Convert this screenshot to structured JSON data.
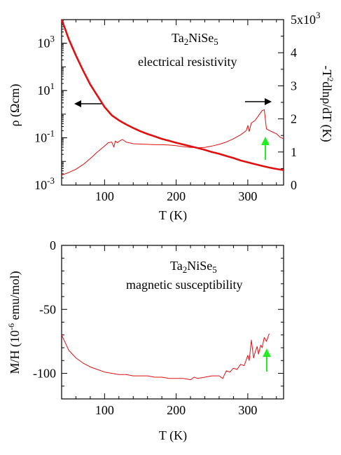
{
  "chart_data": [
    {
      "type": "line",
      "panel": "top",
      "annotations": [
        "Ta2NiSe5",
        "electrical resistivity"
      ],
      "xlabel": "T (K)",
      "ylabel_left": "ρ (Ωcm)",
      "ylabel_right": "-T²dlnρ/dT (K)",
      "xlim": [
        40,
        350
      ],
      "ylim_left": [
        0.001,
        10000
      ],
      "yscale_left": "log",
      "ylim_right": [
        0,
        5000
      ],
      "yscale_right": "linear",
      "x_ticks": [
        "100",
        "200",
        "300"
      ],
      "y_left_ticks": [
        "10^3",
        "10^1",
        "10^-1",
        "10^-3"
      ],
      "y_right_ticks": [
        "5x10^3",
        "4",
        "3",
        "2",
        "1",
        "0"
      ],
      "series": [
        {
          "axis": "left",
          "color": "#e01010",
          "x": [
            40,
            45,
            50,
            60,
            70,
            80,
            90,
            100,
            110,
            120,
            130,
            140,
            150,
            160,
            170,
            180,
            190,
            200,
            210,
            220,
            230,
            240,
            250,
            260,
            270,
            280,
            290,
            300,
            310,
            320,
            330,
            340,
            350
          ],
          "y": [
            10000,
            4000,
            1500,
            300,
            70,
            18,
            6,
            2,
            0.9,
            0.55,
            0.37,
            0.26,
            0.19,
            0.145,
            0.115,
            0.09,
            0.075,
            0.062,
            0.052,
            0.044,
            0.037,
            0.031,
            0.025,
            0.021,
            0.017,
            0.014,
            0.011,
            0.0092,
            0.0077,
            0.0065,
            0.0055,
            0.0048,
            0.0043
          ]
        },
        {
          "axis": "right",
          "color": "#e01010",
          "x": [
            40,
            50,
            60,
            70,
            80,
            90,
            100,
            105,
            110,
            113,
            115,
            118,
            120,
            125,
            130,
            140,
            150,
            160,
            170,
            180,
            190,
            200,
            210,
            220,
            230,
            240,
            250,
            260,
            270,
            280,
            290,
            295,
            298,
            300,
            302,
            305,
            310,
            315,
            320,
            323,
            326,
            330,
            335,
            340,
            345,
            350
          ],
          "y": [
            300,
            380,
            480,
            620,
            800,
            1000,
            1180,
            1280,
            1300,
            1150,
            1330,
            1280,
            1320,
            1380,
            1300,
            1250,
            1240,
            1230,
            1220,
            1220,
            1210,
            1190,
            1160,
            1140,
            1130,
            1140,
            1180,
            1230,
            1300,
            1400,
            1520,
            1600,
            1650,
            1800,
            1620,
            1880,
            1950,
            2100,
            2250,
            2280,
            1700,
            1650,
            1600,
            1550,
            1450,
            1400
          ]
        }
      ]
    },
    {
      "type": "line",
      "panel": "bottom",
      "annotations": [
        "Ta2NiSe5",
        "magnetic susceptibility"
      ],
      "xlabel": "T (K)",
      "ylabel": "M/H (10^-6 emu/mol)",
      "xlim": [
        40,
        350
      ],
      "ylim": [
        -120,
        0
      ],
      "x_ticks": [
        "100",
        "200",
        "300"
      ],
      "y_ticks": [
        "0",
        "-50",
        "-100"
      ],
      "series": [
        {
          "color": "#e01010",
          "x": [
            40,
            45,
            50,
            60,
            70,
            80,
            90,
            100,
            110,
            120,
            130,
            140,
            150,
            160,
            170,
            180,
            190,
            200,
            210,
            220,
            225,
            230,
            240,
            250,
            260,
            265,
            270,
            275,
            280,
            285,
            290,
            295,
            300,
            302,
            305,
            308,
            310,
            313,
            315,
            318,
            320,
            323,
            326,
            330
          ],
          "y": [
            -70,
            -76,
            -82,
            -88,
            -92,
            -95,
            -97,
            -99,
            -100,
            -101,
            -101,
            -102,
            -102,
            -102,
            -103,
            -103,
            -104,
            -104,
            -104,
            -105,
            -103,
            -104,
            -103,
            -102,
            -102,
            -104,
            -98,
            -99,
            -96,
            -97,
            -93,
            -94,
            -86,
            -90,
            -74,
            -88,
            -84,
            -79,
            -85,
            -78,
            -80,
            -72,
            -75,
            -69
          ]
        }
      ]
    }
  ]
}
